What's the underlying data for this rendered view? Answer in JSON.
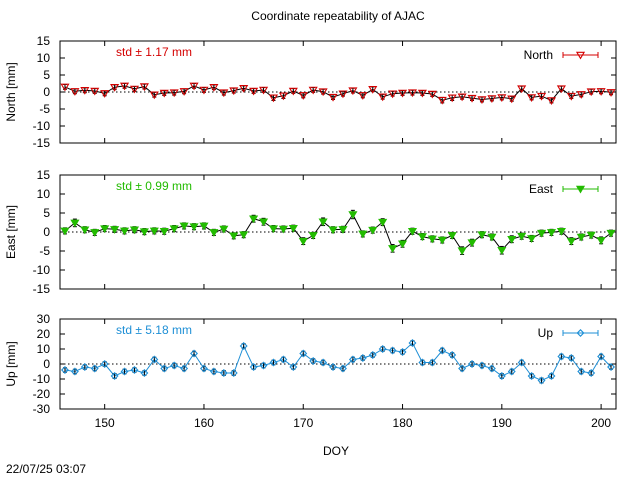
{
  "title": "Coordinate repeatability of AJAC",
  "timestamp": "22/07/25 03:07",
  "colors": {
    "north": "#d40000",
    "east": "#22bb00",
    "up": "#1e8fd6",
    "black": "#000000"
  },
  "chart_data": [
    {
      "type": "scatter",
      "panel": "north",
      "ylabel": "North [mm]",
      "legend": "North",
      "legend_position": "top-right",
      "std_label": "std ± 1.17 mm",
      "ylim": [
        -15,
        15
      ],
      "yticks": [
        15,
        10,
        5,
        0,
        -5,
        -10,
        -15
      ],
      "marker": "triangle-down-open",
      "x": [
        146,
        147,
        148,
        149,
        150,
        151,
        152,
        153,
        154,
        155,
        156,
        157,
        158,
        159,
        160,
        161,
        162,
        163,
        164,
        165,
        166,
        167,
        168,
        169,
        170,
        171,
        172,
        173,
        174,
        175,
        176,
        177,
        178,
        179,
        180,
        181,
        182,
        183,
        184,
        185,
        186,
        187,
        188,
        189,
        190,
        191,
        192,
        193,
        194,
        195,
        196,
        197,
        198,
        199,
        200,
        201
      ],
      "values": [
        1.5,
        0.2,
        0.5,
        0.3,
        -0.4,
        1.4,
        1.8,
        0.9,
        1.6,
        -0.8,
        -0.3,
        -0.2,
        0.2,
        1.8,
        0.6,
        1.4,
        -0.2,
        0.4,
        1.1,
        0.3,
        0.6,
        -1.7,
        -1.1,
        0.3,
        -1.0,
        0.6,
        0.1,
        -1.5,
        -0.5,
        0.4,
        -1.0,
        0.8,
        -1.4,
        -0.5,
        -0.3,
        -0.2,
        -0.3,
        -0.6,
        -2.4,
        -1.7,
        -1.4,
        -1.8,
        -2.2,
        -1.9,
        -1.6,
        -2.0,
        1.0,
        -1.6,
        -1.2,
        -2.5,
        1.0,
        -1.2,
        -0.7,
        0.1,
        0.2,
        -0.1
      ],
      "errors": [
        0.7,
        0.7,
        0.7,
        0.7,
        0.7,
        0.7,
        0.7,
        0.7,
        0.7,
        0.7,
        0.7,
        0.7,
        0.7,
        0.7,
        0.7,
        0.7,
        0.7,
        0.7,
        0.7,
        0.7,
        0.7,
        0.8,
        0.8,
        0.7,
        0.7,
        0.7,
        0.7,
        0.7,
        0.7,
        0.7,
        0.7,
        0.7,
        0.7,
        0.7,
        0.7,
        0.7,
        0.7,
        0.7,
        0.8,
        0.8,
        0.7,
        0.7,
        0.7,
        0.7,
        0.7,
        0.7,
        0.7,
        0.7,
        0.7,
        0.7,
        0.7,
        0.7,
        0.7,
        0.7,
        0.7,
        0.7
      ]
    },
    {
      "type": "scatter",
      "panel": "east",
      "ylabel": "East [mm]",
      "legend": "East",
      "legend_position": "top-right",
      "std_label": "std ± 0.99 mm",
      "ylim": [
        -15,
        15
      ],
      "yticks": [
        15,
        10,
        5,
        0,
        -5,
        -10,
        -15
      ],
      "marker": "triangle-down-filled",
      "x": [
        146,
        147,
        148,
        149,
        150,
        151,
        152,
        153,
        154,
        155,
        156,
        157,
        158,
        159,
        160,
        161,
        162,
        163,
        164,
        165,
        166,
        167,
        168,
        169,
        170,
        171,
        172,
        173,
        174,
        175,
        176,
        177,
        178,
        179,
        180,
        181,
        182,
        183,
        184,
        185,
        186,
        187,
        188,
        189,
        190,
        191,
        192,
        193,
        194,
        195,
        196,
        197,
        198,
        199,
        200,
        201
      ],
      "values": [
        0.3,
        2.4,
        0.6,
        -0.1,
        0.9,
        0.7,
        0.3,
        0.6,
        0.1,
        0.3,
        0.2,
        0.9,
        1.6,
        1.4,
        1.6,
        -0.1,
        0.8,
        -1.0,
        -0.7,
        3.5,
        2.7,
        0.9,
        0.8,
        1.0,
        -2.4,
        -0.9,
        2.7,
        0.6,
        0.7,
        4.6,
        -0.5,
        0.5,
        2.6,
        -4.3,
        -3.1,
        0.2,
        -1.2,
        -1.8,
        -2.1,
        -0.9,
        -4.9,
        -2.8,
        -0.7,
        -1.3,
        -4.8,
        -1.9,
        -1.1,
        -1.7,
        -0.3,
        -0.1,
        0.2,
        -2.4,
        -1.3,
        -0.8,
        -2.2,
        -0.3
      ],
      "errors": [
        0.8,
        1.0,
        0.8,
        0.8,
        0.8,
        0.8,
        0.8,
        0.8,
        0.8,
        0.8,
        0.8,
        0.8,
        0.8,
        0.8,
        0.8,
        0.8,
        0.8,
        0.8,
        0.8,
        0.9,
        0.9,
        0.8,
        0.8,
        0.8,
        0.9,
        0.8,
        1.0,
        0.8,
        0.8,
        1.1,
        0.8,
        0.8,
        0.9,
        1.0,
        0.9,
        0.8,
        0.8,
        0.8,
        0.8,
        0.8,
        1.0,
        0.9,
        0.8,
        0.8,
        1.0,
        0.9,
        0.8,
        0.8,
        0.8,
        0.8,
        0.8,
        0.9,
        0.8,
        0.8,
        0.9,
        0.8
      ]
    },
    {
      "type": "scatter",
      "panel": "up",
      "ylabel": "Up [mm]",
      "xlabel": "DOY",
      "legend": "Up",
      "legend_position": "top-right",
      "std_label": "std ± 5.18 mm",
      "ylim": [
        -30,
        30
      ],
      "yticks": [
        30,
        20,
        10,
        0,
        -10,
        -20,
        -30
      ],
      "xlim": [
        145.5,
        201.5
      ],
      "xticks": [
        150,
        160,
        170,
        180,
        190,
        200
      ],
      "marker": "diamond-open",
      "x": [
        146,
        147,
        148,
        149,
        150,
        151,
        152,
        153,
        154,
        155,
        156,
        157,
        158,
        159,
        160,
        161,
        162,
        163,
        164,
        165,
        166,
        167,
        168,
        169,
        170,
        171,
        172,
        173,
        174,
        175,
        176,
        177,
        178,
        179,
        180,
        181,
        182,
        183,
        184,
        185,
        186,
        187,
        188,
        189,
        190,
        191,
        192,
        193,
        194,
        195,
        196,
        197,
        198,
        199,
        200,
        201
      ],
      "values": [
        -4,
        -5,
        -2,
        -3,
        0,
        -8,
        -5,
        -4,
        -6,
        3,
        -3,
        -1,
        -3,
        7,
        -3,
        -5,
        -6,
        -6,
        12,
        -2,
        -1,
        1,
        3,
        -2,
        7,
        2,
        1,
        -2,
        -3,
        3,
        4,
        6,
        10,
        9,
        8,
        14,
        1,
        1,
        9,
        6,
        -3,
        0,
        -1,
        -3,
        -8,
        -5,
        1,
        -8,
        -11,
        -8,
        5,
        4,
        -5,
        -6,
        5,
        -2
      ],
      "errors": [
        1.5,
        1.5,
        1.5,
        1.5,
        1.5,
        1.6,
        1.5,
        1.5,
        1.5,
        1.5,
        1.5,
        1.5,
        1.5,
        1.5,
        1.5,
        1.5,
        1.6,
        1.6,
        1.5,
        1.5,
        1.5,
        1.5,
        1.5,
        1.5,
        1.5,
        1.5,
        1.5,
        1.5,
        1.5,
        1.5,
        1.5,
        1.5,
        1.5,
        1.5,
        1.5,
        1.5,
        1.5,
        1.5,
        1.5,
        1.5,
        1.5,
        1.5,
        1.5,
        1.5,
        1.6,
        1.5,
        1.5,
        1.5,
        1.6,
        1.5,
        1.5,
        1.5,
        1.5,
        1.5,
        1.5,
        1.5
      ]
    }
  ]
}
